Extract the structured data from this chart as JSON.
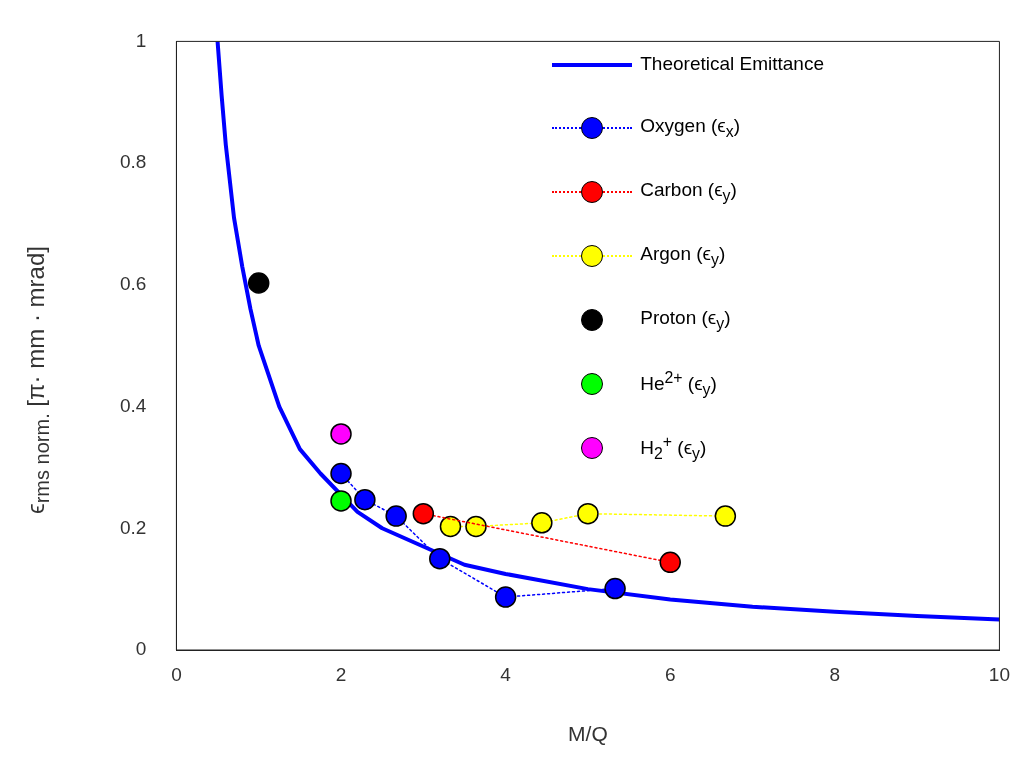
{
  "chart_data": {
    "type": "scatter",
    "xlabel": "M/Q",
    "ylabel": "ϵ$_{rms norm.}$ [π· mm · mrad]",
    "xlim": [
      0,
      10
    ],
    "xticks": [
      0,
      2,
      4,
      6,
      8,
      10
    ],
    "ylim": [
      0,
      1
    ],
    "yticks": [
      0,
      0.2,
      0.4,
      0.6,
      0.8,
      1
    ],
    "grid": false,
    "legend": "top right",
    "series": [
      {
        "name": "Theoretical Emittance",
        "type": "line",
        "color": "#0000ff",
        "marker": "none",
        "line_style": "solid",
        "x": [
          0.5,
          0.55,
          0.6,
          0.7,
          0.8,
          0.9,
          1,
          1.25,
          1.5,
          1.75,
          2.2,
          2.5,
          3,
          3.5,
          4,
          5,
          6,
          7,
          8,
          9,
          10
        ],
        "values": [
          1,
          0.91,
          0.83,
          0.71,
          0.63,
          0.56,
          0.5,
          0.4,
          0.33,
          0.29,
          0.227,
          0.2,
          0.17,
          0.14,
          0.125,
          0.1,
          0.083,
          0.071,
          0.063,
          0.056,
          0.05
        ]
      },
      {
        "name": "Oxygen (ϵ$_{x}$)",
        "type": "line",
        "color": "#0000ff",
        "marker": "circle",
        "line_style": "dotted",
        "x": [
          2,
          2.29,
          2.67,
          3.2,
          4,
          5.33
        ],
        "values": [
          0.29,
          0.247,
          0.22,
          0.15,
          0.087,
          0.101
        ]
      },
      {
        "name": "Carbon (ϵ$_{y}$)",
        "type": "line",
        "color": "#ff0000",
        "marker": "circle",
        "line_style": "dotted",
        "x": [
          3,
          6
        ],
        "values": [
          0.224,
          0.144
        ]
      },
      {
        "name": "Argon (ϵ$_{y}$)",
        "type": "line",
        "color": "#ffff00",
        "marker": "circle",
        "line_style": "dotted",
        "x": [
          3.33,
          3.64,
          4.44,
          5,
          6.67
        ],
        "values": [
          0.203,
          0.203,
          0.209,
          0.224,
          0.22
        ]
      },
      {
        "name": "Proton (ϵ$_{y}$)",
        "type": "scatter",
        "color": "#000000",
        "marker": "circle",
        "x": [
          1
        ],
        "values": [
          0.603
        ]
      },
      {
        "name": "He$^{2+}$ (ϵ$_{y}$)",
        "type": "scatter",
        "color": "#00ff00",
        "marker": "circle",
        "x": [
          2
        ],
        "values": [
          0.245
        ]
      },
      {
        "name": "H$_{2}$$^{+}$ (ϵ$_{y}$)",
        "type": "scatter",
        "color": "#ff00ff",
        "marker": "circle",
        "x": [
          2
        ],
        "values": [
          0.355
        ]
      }
    ]
  }
}
